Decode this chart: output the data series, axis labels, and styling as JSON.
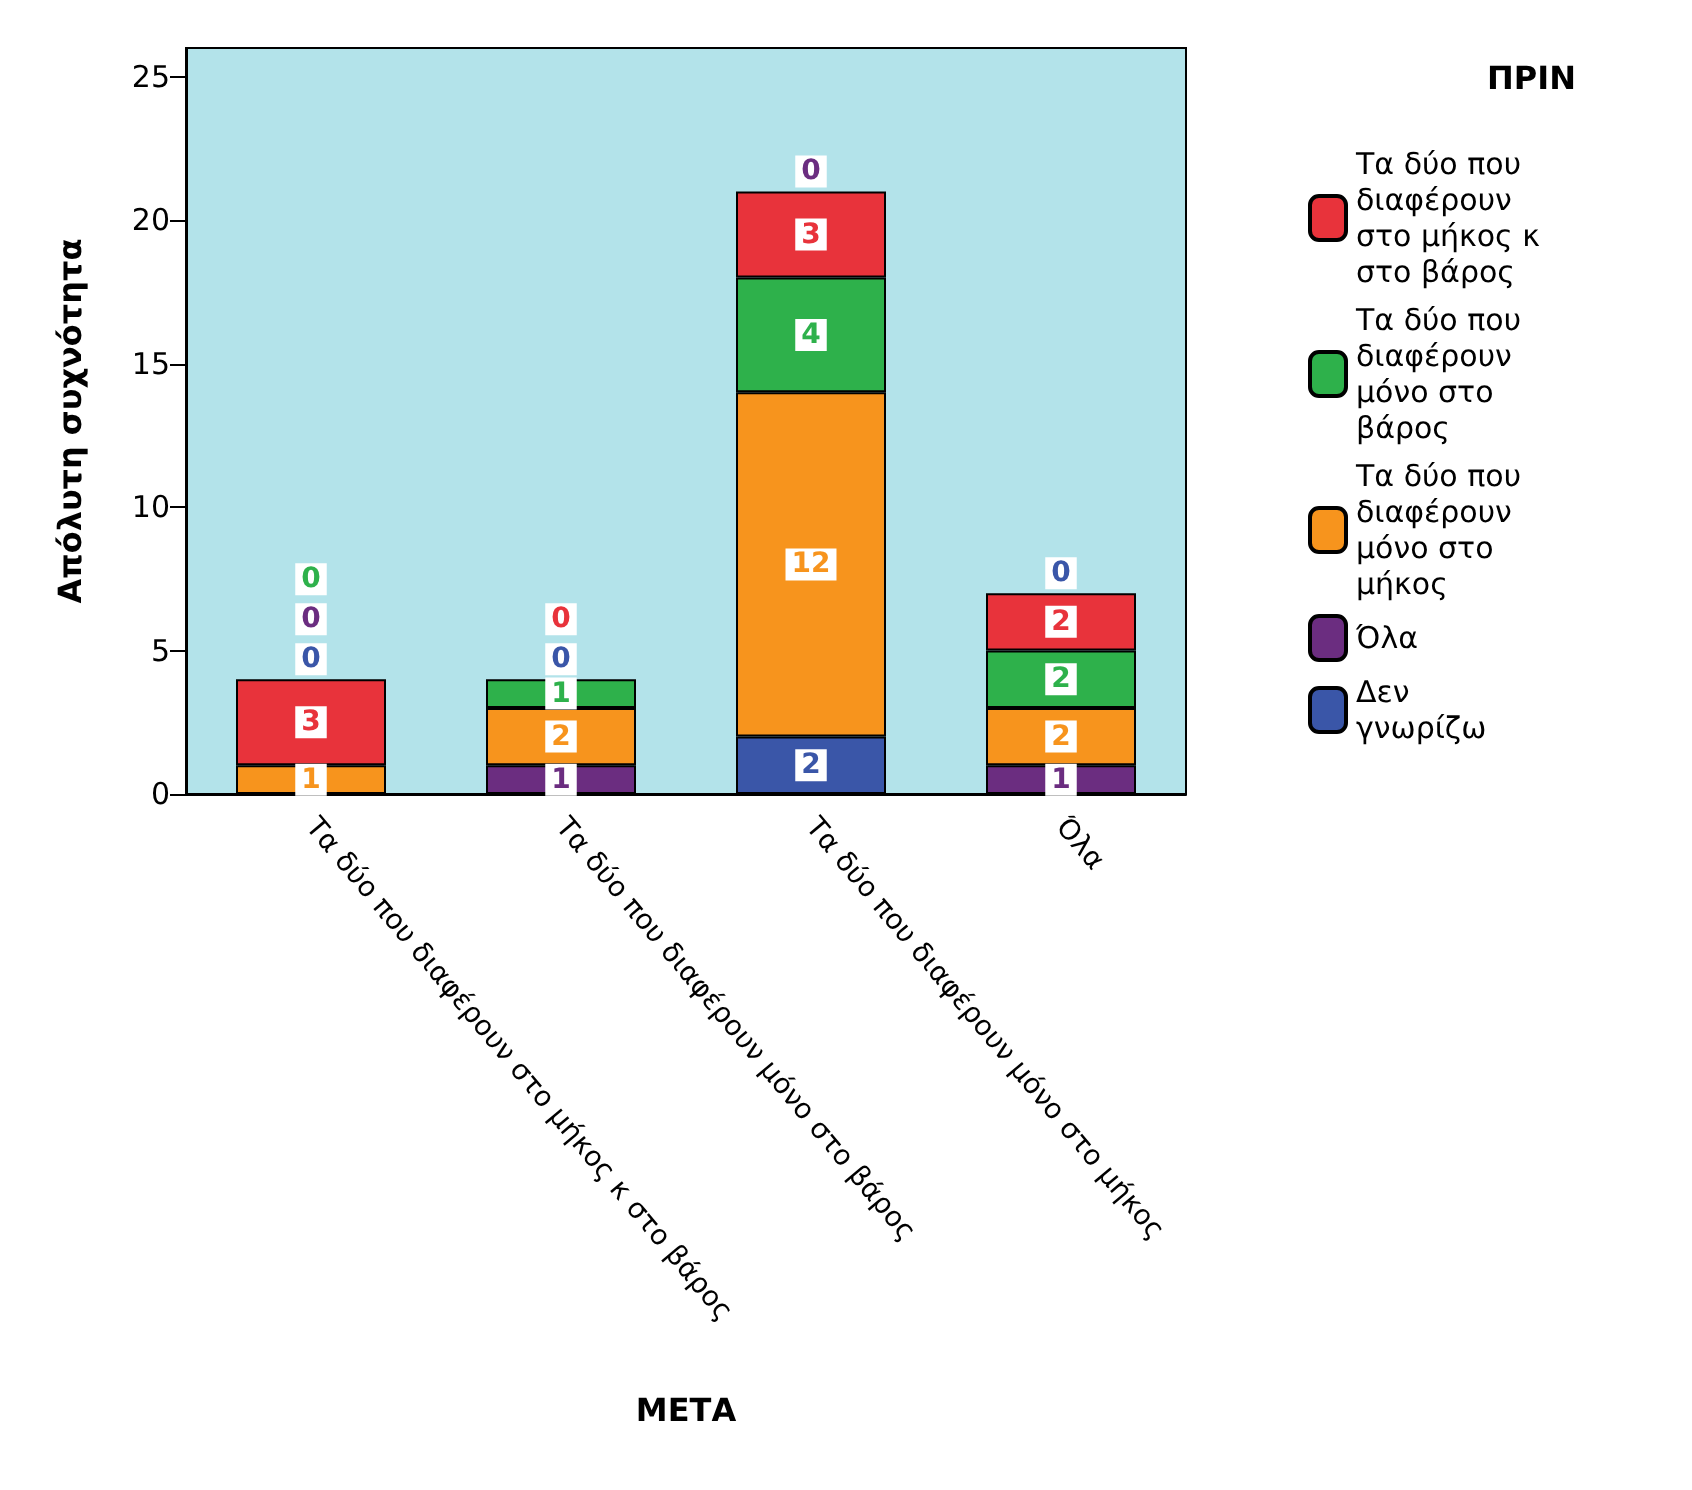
{
  "chart_data": {
    "type": "bar",
    "stacked": true,
    "xlabel": "ΜΕΤΑ",
    "ylabel": "Απόλυτη συχνότητα",
    "legend_title": "ΠΡΙΝ",
    "legend": "right",
    "categories": [
      "Τα δύο που διαφέρουν στο μήκος κ στο βάρος",
      "Τα δύο που διαφέρουν μόνο στο βάρος",
      "Τα δύο που διαφέρουν μόνο στο μήκος",
      "Όλα"
    ],
    "series": [
      {
        "name": "Δεν γνωρίζω",
        "color": "#3a56a8",
        "values": [
          0,
          0,
          2,
          0
        ]
      },
      {
        "name": "Όλα",
        "color": "#6b2d80",
        "values": [
          0,
          1,
          0,
          1
        ]
      },
      {
        "name": "Τα δύο που διαφέρουν μόνο στο μήκος",
        "color": "#f7941d",
        "values": [
          1,
          2,
          12,
          2
        ]
      },
      {
        "name": "Τα δύο που διαφέρουν μόνο στο βάρος",
        "color": "#2eb14b",
        "values": [
          0,
          1,
          4,
          2
        ]
      },
      {
        "name": "Τα δύο που διαφέρουν στο μήκος κ στο βάρος",
        "color": "#e8333b",
        "values": [
          3,
          0,
          3,
          2
        ]
      }
    ],
    "ylim": [
      0,
      26
    ],
    "yticks": [
      0,
      5,
      10,
      15,
      20,
      25
    ],
    "grid": false,
    "data_labels": true
  }
}
